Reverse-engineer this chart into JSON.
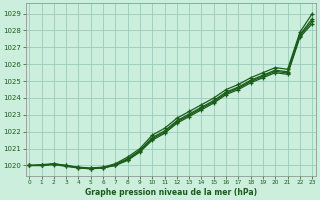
{
  "title": "Graphe pression niveau de la mer (hPa)",
  "bg_color": "#cceedd",
  "grid_color": "#99ccbb",
  "line_color": "#1a5c1a",
  "x_min": 0,
  "x_max": 23,
  "y_min": 1019.4,
  "y_max": 1029.6,
  "yticks": [
    1020,
    1021,
    1022,
    1023,
    1024,
    1025,
    1026,
    1027,
    1028,
    1029
  ],
  "xticks": [
    0,
    1,
    2,
    3,
    4,
    5,
    6,
    7,
    8,
    9,
    10,
    11,
    12,
    13,
    14,
    15,
    16,
    17,
    18,
    19,
    20,
    21,
    22,
    23
  ],
  "series": [
    [
      1020.0,
      1020.0,
      1020.1,
      1020.0,
      1019.9,
      1019.85,
      1019.9,
      1020.1,
      1020.5,
      1021.0,
      1021.8,
      1022.2,
      1022.8,
      1023.2,
      1023.6,
      1024.0,
      1024.5,
      1024.8,
      1025.2,
      1025.5,
      1025.8,
      1025.7,
      1027.9,
      1029.0
    ],
    [
      1020.0,
      1020.0,
      1020.05,
      1019.95,
      1019.85,
      1019.8,
      1019.85,
      1020.0,
      1020.3,
      1020.8,
      1021.5,
      1021.9,
      1022.5,
      1022.9,
      1023.3,
      1023.7,
      1024.2,
      1024.5,
      1024.9,
      1025.2,
      1025.5,
      1025.4,
      1027.6,
      1028.4
    ],
    [
      1020.0,
      1020.05,
      1020.1,
      1020.0,
      1019.88,
      1019.82,
      1019.88,
      1020.05,
      1020.4,
      1020.9,
      1021.65,
      1022.05,
      1022.65,
      1023.05,
      1023.45,
      1023.85,
      1024.35,
      1024.65,
      1025.05,
      1025.35,
      1025.65,
      1025.55,
      1027.75,
      1028.7
    ],
    [
      1020.0,
      1020.0,
      1020.08,
      1019.97,
      1019.86,
      1019.81,
      1019.86,
      1020.02,
      1020.35,
      1020.85,
      1021.58,
      1021.98,
      1022.58,
      1022.98,
      1023.38,
      1023.78,
      1024.28,
      1024.58,
      1024.98,
      1025.28,
      1025.58,
      1025.48,
      1027.68,
      1028.55
    ]
  ]
}
